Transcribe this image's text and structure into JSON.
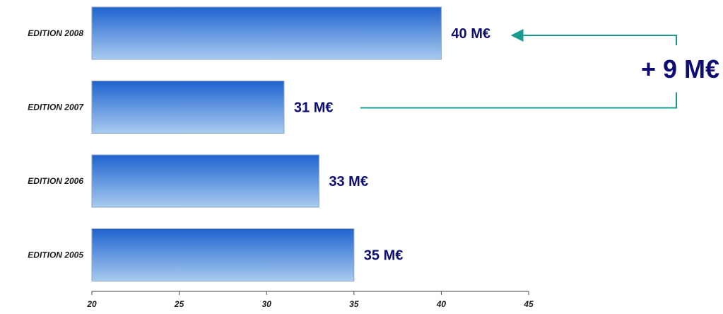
{
  "chart_data": {
    "type": "bar",
    "orientation": "horizontal",
    "categories": [
      "EDITION 2008",
      "EDITION 2007",
      "EDITION 2006",
      "EDITION 2005"
    ],
    "values": [
      40,
      31,
      33,
      35
    ],
    "value_labels": [
      "40 M€",
      "31 M€",
      "33 M€",
      "35 M€"
    ],
    "xlim": [
      20,
      45
    ],
    "x_ticks": [
      20,
      25,
      30,
      35,
      40,
      45
    ],
    "title": "",
    "xlabel": "",
    "ylabel": "",
    "grid": false,
    "legend": "none",
    "annotation": {
      "text": "+ 9 M€",
      "from": "EDITION 2007",
      "to": "EDITION 2008"
    }
  },
  "colors": {
    "bar_top": "#1f63cf",
    "bar_bottom": "#a8cbef",
    "bar_border": "#8fa4bd",
    "value_text": "#0d0d73",
    "annotation_line": "#1a9b8f",
    "axis": "#444444"
  }
}
